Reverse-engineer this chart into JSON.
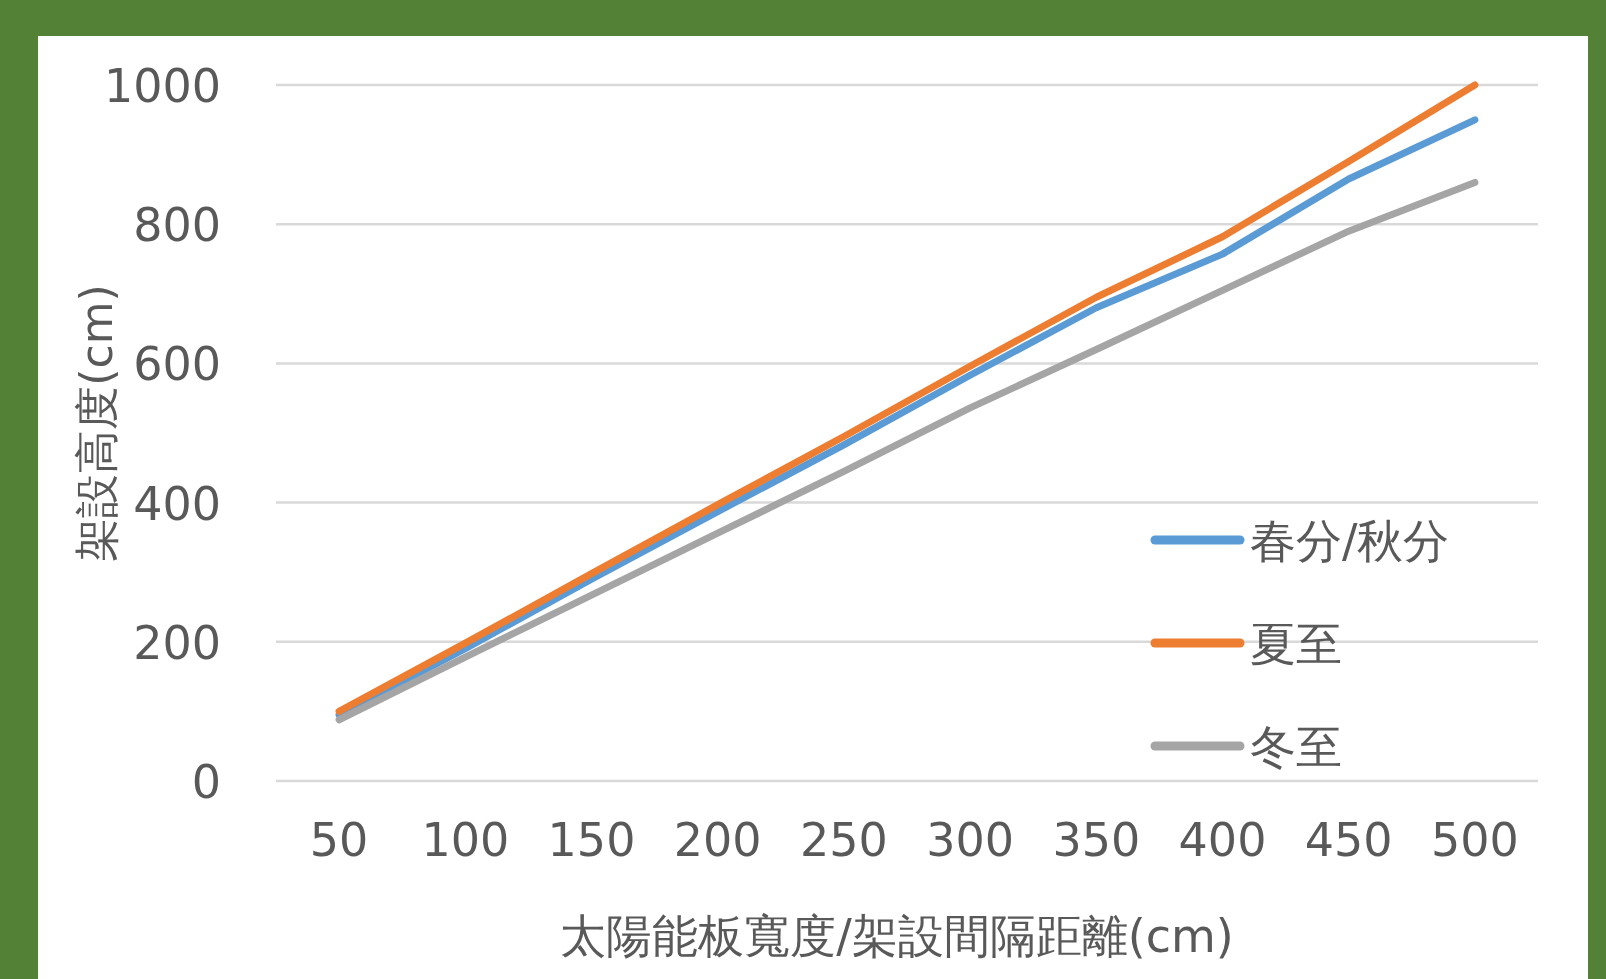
{
  "chart_data": {
    "type": "line",
    "xlabel": "太陽能板寬度/架設間隔距離(cm)",
    "ylabel": "架設高度(cm)",
    "categories": [
      "50",
      "100",
      "150",
      "200",
      "250",
      "300",
      "350",
      "400",
      "450",
      "500"
    ],
    "series": [
      {
        "name": "春分/秋分",
        "color": "#5b9bd5",
        "values": [
          95,
          190,
          290,
          387,
          483,
          583,
          680,
          757,
          865,
          950
        ]
      },
      {
        "name": "夏至",
        "color": "#ed7d31",
        "values": [
          100,
          198,
          298,
          397,
          495,
          596,
          695,
          782,
          890,
          1000
        ]
      },
      {
        "name": "冬至",
        "color": "#a5a5a5",
        "values": [
          88,
          178,
          267,
          356,
          445,
          536,
          620,
          705,
          790,
          860
        ]
      }
    ],
    "ylim": [
      0,
      1000
    ],
    "yticks": [
      0,
      200,
      400,
      600,
      800,
      1000
    ],
    "grid": "y",
    "legend": "right",
    "marker": "none",
    "line_style": "solid"
  }
}
